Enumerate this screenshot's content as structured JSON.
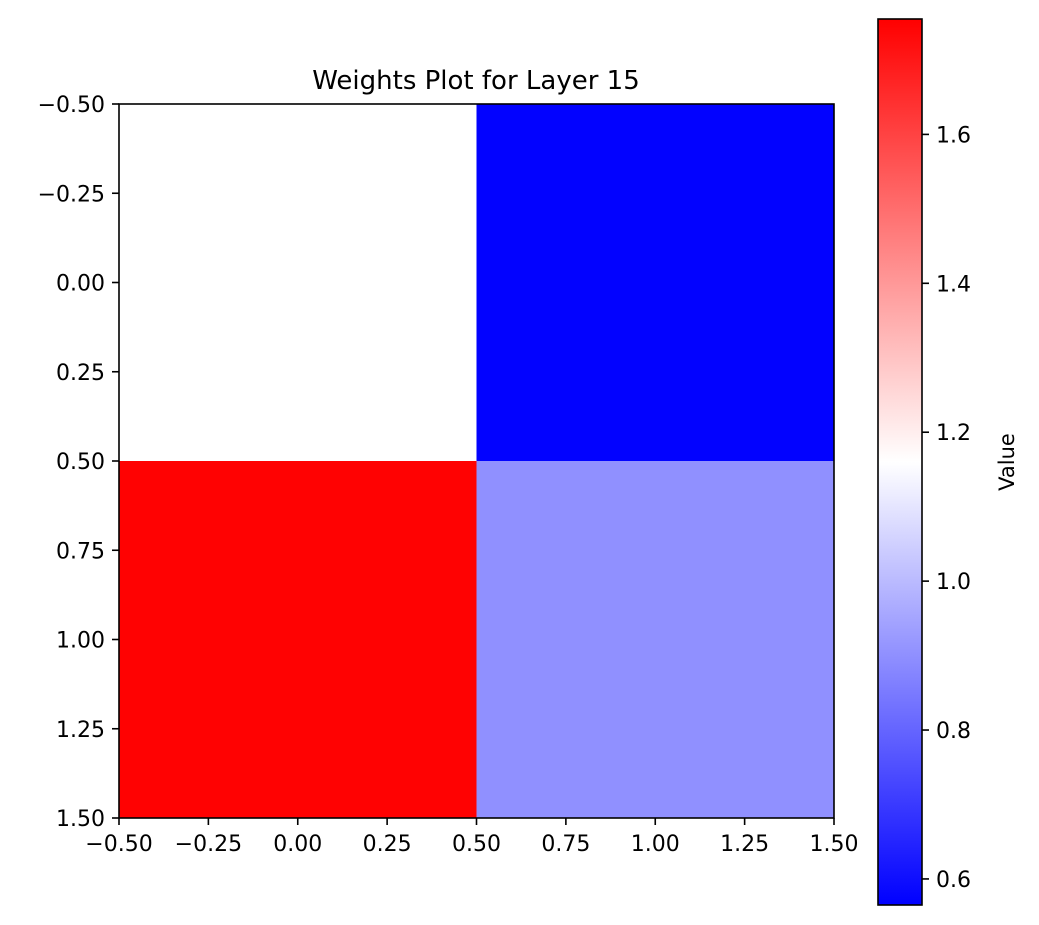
{
  "chart_data": {
    "type": "heatmap",
    "title": "Weights Plot for Layer 15",
    "xlabel": "",
    "ylabel": "",
    "matrix": [
      [
        1.16,
        0.57
      ],
      [
        1.75,
        0.9
      ]
    ],
    "xlim": [
      -0.5,
      1.5
    ],
    "ylim": [
      1.5,
      -0.5
    ],
    "xticks": [
      -0.5,
      -0.25,
      0.0,
      0.25,
      0.5,
      0.75,
      1.0,
      1.25,
      1.5
    ],
    "xtick_labels": [
      "−0.50",
      "−0.25",
      "0.00",
      "0.25",
      "0.50",
      "0.75",
      "1.00",
      "1.25",
      "1.50"
    ],
    "yticks": [
      -0.5,
      -0.25,
      0.0,
      0.25,
      0.5,
      0.75,
      1.0,
      1.25,
      1.5
    ],
    "ytick_labels": [
      "−0.50",
      "−0.25",
      "0.00",
      "0.25",
      "0.50",
      "0.75",
      "1.00",
      "1.25",
      "1.50"
    ],
    "colormap": "bwr",
    "colorbar": {
      "label": "Value",
      "vmin": 0.565,
      "vmax": 1.755,
      "ticks": [
        0.6,
        0.8,
        1.0,
        1.2,
        1.4,
        1.6
      ],
      "tick_labels": [
        "0.6",
        "0.8",
        "1.0",
        "1.2",
        "1.4",
        "1.6"
      ]
    },
    "grid": false,
    "legend": "none"
  },
  "colors": {
    "low": "#0000ff",
    "mid": "#ffffff",
    "high": "#ff0000"
  }
}
